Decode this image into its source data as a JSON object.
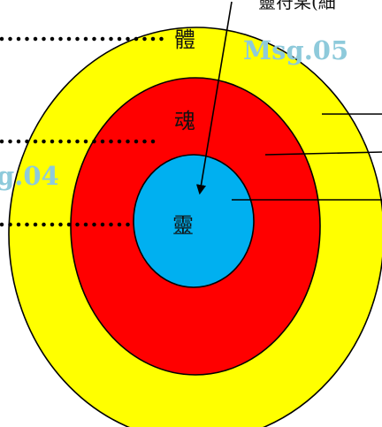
{
  "diagram": {
    "top_caption": "靈符某(細",
    "rings": [
      {
        "id": "body",
        "label": "體",
        "fill": "#ffff00"
      },
      {
        "id": "soul",
        "label": "魂",
        "fill": "#ff0000"
      },
      {
        "id": "spirit",
        "label": "靈",
        "fill": "#00b0f0"
      }
    ],
    "messages": [
      {
        "label": "Msg.05",
        "color": "#8ecadb"
      },
      {
        "label": "g.04",
        "color": "#8ecadb"
      }
    ],
    "stroke_color": "#000000"
  }
}
